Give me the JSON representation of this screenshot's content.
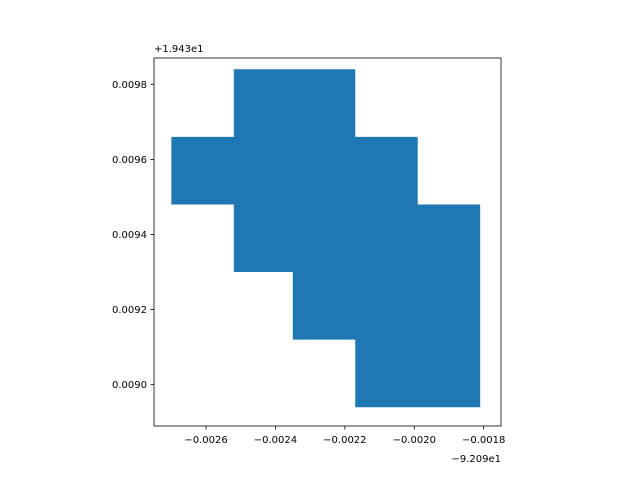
{
  "chart_data": {
    "type": "area",
    "title": "",
    "xlabel": "",
    "ylabel": "",
    "x_offset_text": "−9.209e1",
    "y_offset_text": "+1.943e1",
    "xlim": [
      -0.00275,
      -0.00175
    ],
    "ylim": [
      0.00889,
      0.00987
    ],
    "x_ticks": [
      -0.0026,
      -0.0024,
      -0.0022,
      -0.002,
      -0.0018
    ],
    "x_tick_labels": [
      "−0.0026",
      "−0.0024",
      "−0.0022",
      "−0.0020",
      "−0.0018"
    ],
    "y_ticks": [
      0.009,
      0.0092,
      0.0094,
      0.0096,
      0.0098
    ],
    "y_tick_labels": [
      "0.0090",
      "0.0092",
      "0.0094",
      "0.0096",
      "0.0098"
    ],
    "grid": false,
    "fill_color": "#1f77b4",
    "polygon": [
      [
        -0.00252,
        0.00984
      ],
      [
        -0.00217,
        0.00984
      ],
      [
        -0.00217,
        0.00966
      ],
      [
        -0.00199,
        0.00966
      ],
      [
        -0.00199,
        0.00948
      ],
      [
        -0.00181,
        0.00948
      ],
      [
        -0.00181,
        0.00894
      ],
      [
        -0.00217,
        0.00894
      ],
      [
        -0.00217,
        0.00912
      ],
      [
        -0.00235,
        0.00912
      ],
      [
        -0.00235,
        0.0093
      ],
      [
        -0.00252,
        0.0093
      ],
      [
        -0.00252,
        0.00948
      ],
      [
        -0.0027,
        0.00948
      ],
      [
        -0.0027,
        0.00966
      ],
      [
        -0.00252,
        0.00966
      ]
    ]
  }
}
